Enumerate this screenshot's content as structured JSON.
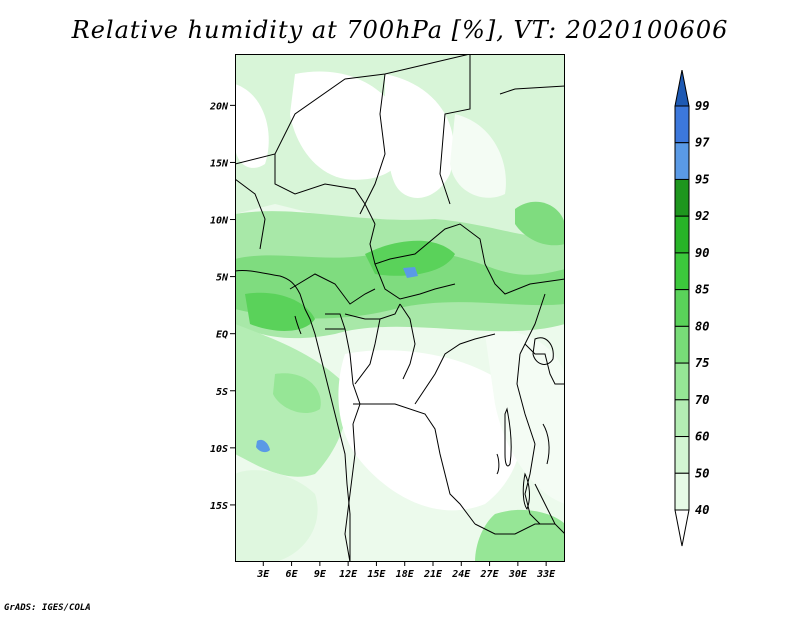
{
  "title": "Relative humidity at 700hPa [%], VT: 2020100606",
  "footer": "GrADS: IGES/COLA",
  "map": {
    "lon_range": [
      0,
      35
    ],
    "lat_range": [
      -20,
      24.5
    ],
    "lat_ticks": [
      {
        "value": 20,
        "label": "20N"
      },
      {
        "value": 15,
        "label": "15N"
      },
      {
        "value": 10,
        "label": "10N"
      },
      {
        "value": 5,
        "label": "5N"
      },
      {
        "value": 0,
        "label": "EQ"
      },
      {
        "value": -5,
        "label": "5S"
      },
      {
        "value": -10,
        "label": "10S"
      },
      {
        "value": -15,
        "label": "15S"
      }
    ],
    "lon_ticks": [
      {
        "value": 3,
        "label": "3E"
      },
      {
        "value": 6,
        "label": "6E"
      },
      {
        "value": 9,
        "label": "9E"
      },
      {
        "value": 12,
        "label": "12E"
      },
      {
        "value": 15,
        "label": "15E"
      },
      {
        "value": 18,
        "label": "18E"
      },
      {
        "value": 21,
        "label": "21E"
      },
      {
        "value": 24,
        "label": "24E"
      },
      {
        "value": 27,
        "label": "27E"
      },
      {
        "value": 30,
        "label": "30E"
      },
      {
        "value": 33,
        "label": "33E"
      }
    ]
  },
  "colorbar": {
    "levels": [
      "40",
      "50",
      "60",
      "70",
      "75",
      "80",
      "85",
      "90",
      "92",
      "95",
      "97",
      "99"
    ],
    "colors": [
      "#ffffff",
      "#e6fae6",
      "#d2f5d2",
      "#b4edb4",
      "#96e696",
      "#78dc78",
      "#5ad25a",
      "#3cc83c",
      "#28b428",
      "#1e961e",
      "#5a9ae6",
      "#3c78dc",
      "#1e5ab4"
    ]
  }
}
